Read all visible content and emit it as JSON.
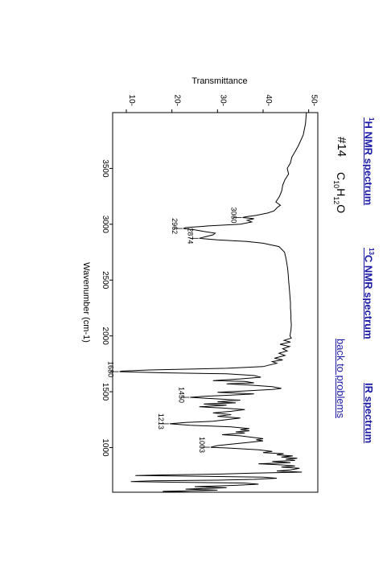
{
  "nav": {
    "h1_nmr": "1H NMR spectrum",
    "c13_nmr": "13C NMR spectrum",
    "ir": "IR spectrum",
    "back": "back to problems"
  },
  "problem": {
    "number": "#14",
    "formula": "C10H12O"
  },
  "chart_data": {
    "type": "line",
    "ylabel": "Transmittance",
    "xlabel": "Wavenumber (cm-1)",
    "xlim": [
      4000,
      600
    ],
    "ylim": [
      7,
      52
    ],
    "x_ticks": [
      3500,
      3000,
      2500,
      2000,
      1500,
      1000
    ],
    "y_ticks": [
      10,
      20,
      30,
      40,
      50
    ],
    "grid": false,
    "line_color": "#000000",
    "peak_labels": [
      {
        "x": 3060,
        "y": 35.5,
        "label": "3060"
      },
      {
        "x": 2962,
        "y": 22.5,
        "label": "2962"
      },
      {
        "x": 2874,
        "y": 26,
        "label": "2874"
      },
      {
        "x": 1680,
        "y": 8.5,
        "label": "1680"
      },
      {
        "x": 1450,
        "y": 24,
        "label": "1450"
      },
      {
        "x": 1213,
        "y": 19.5,
        "label": "1213"
      },
      {
        "x": 1003,
        "y": 28.5,
        "label": "1003"
      }
    ],
    "spectrum": [
      [
        4000,
        49.5
      ],
      [
        3900,
        49.3
      ],
      [
        3800,
        48.8
      ],
      [
        3700,
        47.7
      ],
      [
        3650,
        47.0
      ],
      [
        3600,
        46.3
      ],
      [
        3550,
        46.0
      ],
      [
        3500,
        45.3
      ],
      [
        3450,
        45.6
      ],
      [
        3400,
        44.8
      ],
      [
        3350,
        44.3
      ],
      [
        3300,
        44.1
      ],
      [
        3250,
        43.6
      ],
      [
        3200,
        42.8
      ],
      [
        3170,
        43.8
      ],
      [
        3150,
        43.1
      ],
      [
        3120,
        42.4
      ],
      [
        3100,
        41.0
      ],
      [
        3080,
        38.5
      ],
      [
        3065,
        36.0
      ],
      [
        3060,
        35.5
      ],
      [
        3050,
        38.0
      ],
      [
        3035,
        36.5
      ],
      [
        3020,
        37.5
      ],
      [
        3000,
        35.0
      ],
      [
        2985,
        28.0
      ],
      [
        2970,
        23.0
      ],
      [
        2962,
        22.5
      ],
      [
        2950,
        25.0
      ],
      [
        2935,
        27.0
      ],
      [
        2920,
        29.5
      ],
      [
        2905,
        29.0
      ],
      [
        2890,
        27.5
      ],
      [
        2874,
        26.0
      ],
      [
        2860,
        30.0
      ],
      [
        2845,
        36.5
      ],
      [
        2830,
        40.0
      ],
      [
        2800,
        43.5
      ],
      [
        2750,
        44.7
      ],
      [
        2700,
        45.0
      ],
      [
        2650,
        45.2
      ],
      [
        2600,
        45.4
      ],
      [
        2550,
        45.5
      ],
      [
        2500,
        45.6
      ],
      [
        2450,
        45.7
      ],
      [
        2400,
        45.8
      ],
      [
        2350,
        45.9
      ],
      [
        2300,
        46.0
      ],
      [
        2250,
        46.0
      ],
      [
        2200,
        46.1
      ],
      [
        2150,
        46.1
      ],
      [
        2100,
        46.2
      ],
      [
        2050,
        46.1
      ],
      [
        2000,
        45.9
      ],
      [
        1980,
        46.2
      ],
      [
        1960,
        44.6
      ],
      [
        1945,
        46.0
      ],
      [
        1925,
        43.7
      ],
      [
        1905,
        45.8
      ],
      [
        1885,
        44.3
      ],
      [
        1865,
        45.3
      ],
      [
        1845,
        43.5
      ],
      [
        1825,
        44.8
      ],
      [
        1800,
        42.5
      ],
      [
        1785,
        44.3
      ],
      [
        1770,
        42.0
      ],
      [
        1755,
        43.0
      ],
      [
        1740,
        41.5
      ],
      [
        1725,
        40.0
      ],
      [
        1710,
        32.0
      ],
      [
        1695,
        15.0
      ],
      [
        1685,
        9.0
      ],
      [
        1680,
        8.5
      ],
      [
        1670,
        18.0
      ],
      [
        1660,
        32.0
      ],
      [
        1645,
        38.0
      ],
      [
        1630,
        39.5
      ],
      [
        1615,
        35.0
      ],
      [
        1600,
        29.0
      ],
      [
        1592,
        36.0
      ],
      [
        1580,
        38.0
      ],
      [
        1570,
        32.0
      ],
      [
        1560,
        37.0
      ],
      [
        1545,
        42.0
      ],
      [
        1530,
        44.0
      ],
      [
        1520,
        42.0
      ],
      [
        1505,
        35.0
      ],
      [
        1495,
        30.0
      ],
      [
        1480,
        38.0
      ],
      [
        1470,
        33.0
      ],
      [
        1460,
        27.5
      ],
      [
        1450,
        24.0
      ],
      [
        1440,
        28.0
      ],
      [
        1425,
        35.0
      ],
      [
        1410,
        30.0
      ],
      [
        1400,
        34.0
      ],
      [
        1390,
        27.0
      ],
      [
        1380,
        32.0
      ],
      [
        1365,
        26.0
      ],
      [
        1355,
        31.0
      ],
      [
        1340,
        36.0
      ],
      [
        1325,
        33.0
      ],
      [
        1310,
        29.0
      ],
      [
        1295,
        33.0
      ],
      [
        1280,
        30.0
      ],
      [
        1265,
        35.0
      ],
      [
        1250,
        32.0
      ],
      [
        1235,
        29.0
      ],
      [
        1225,
        23.0
      ],
      [
        1213,
        19.5
      ],
      [
        1200,
        24.0
      ],
      [
        1185,
        33.0
      ],
      [
        1170,
        37.0
      ],
      [
        1160,
        35.0
      ],
      [
        1150,
        37.0
      ],
      [
        1140,
        34.0
      ],
      [
        1130,
        36.0
      ],
      [
        1115,
        31.0
      ],
      [
        1105,
        35.0
      ],
      [
        1090,
        38.0
      ],
      [
        1080,
        40.0
      ],
      [
        1070,
        38.5
      ],
      [
        1060,
        40.0
      ],
      [
        1045,
        36.5
      ],
      [
        1030,
        33.0
      ],
      [
        1018,
        30.0
      ],
      [
        1008,
        29.0
      ],
      [
        1003,
        28.5
      ],
      [
        995,
        33.0
      ],
      [
        980,
        39.0
      ],
      [
        965,
        42.0
      ],
      [
        955,
        40.0
      ],
      [
        945,
        44.5
      ],
      [
        935,
        43.0
      ],
      [
        925,
        46.5
      ],
      [
        915,
        44.0
      ],
      [
        905,
        47.5
      ],
      [
        895,
        45.0
      ],
      [
        885,
        47.0
      ],
      [
        875,
        42.0
      ],
      [
        865,
        46.0
      ],
      [
        855,
        39.0
      ],
      [
        845,
        44.0
      ],
      [
        835,
        47.0
      ],
      [
        825,
        44.0
      ],
      [
        815,
        48.0
      ],
      [
        800,
        46.0
      ],
      [
        790,
        43.0
      ],
      [
        780,
        48.5
      ],
      [
        770,
        37.0
      ],
      [
        762,
        30.0
      ],
      [
        755,
        18.0
      ],
      [
        750,
        12.0
      ],
      [
        745,
        22.0
      ],
      [
        735,
        40.0
      ],
      [
        725,
        43.0
      ],
      [
        715,
        38.0
      ],
      [
        708,
        30.0
      ],
      [
        702,
        16.0
      ],
      [
        696,
        11.0
      ],
      [
        690,
        20.0
      ],
      [
        682,
        36.0
      ],
      [
        672,
        39.0
      ],
      [
        662,
        34.0
      ],
      [
        650,
        25.0
      ],
      [
        640,
        32.0
      ],
      [
        628,
        23.0
      ],
      [
        618,
        30.0
      ],
      [
        608,
        18.0
      ],
      [
        600,
        24.0
      ]
    ]
  }
}
